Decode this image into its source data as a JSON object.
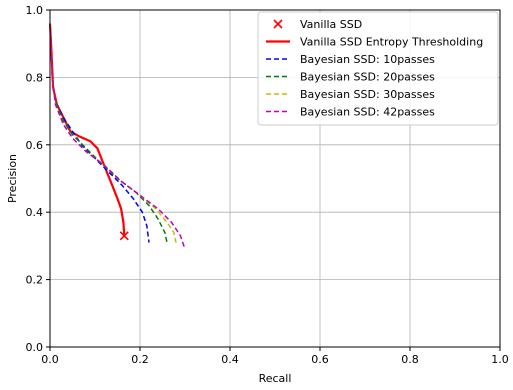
{
  "chart_data": {
    "type": "line",
    "xlabel": "Recall",
    "ylabel": "Precision",
    "xlim": [
      0.0,
      1.0
    ],
    "ylim": [
      0.0,
      1.0
    ],
    "xticks": [
      "0.0",
      "0.2",
      "0.4",
      "0.6",
      "0.8",
      "1.0"
    ],
    "yticks": [
      "0.0",
      "0.2",
      "0.4",
      "0.6",
      "0.8",
      "1.0"
    ],
    "grid": true,
    "legend_position": "top-right",
    "series": [
      {
        "name": "Vanilla SSD",
        "kind": "marker",
        "marker": "x",
        "color": "#ff0000",
        "points": [
          [
            0.165,
            0.33
          ]
        ]
      },
      {
        "name": "Vanilla SSD Entropy Thresholding",
        "kind": "line",
        "dash": "solid",
        "color": "#ff0000",
        "points": [
          [
            0.0,
            0.96
          ],
          [
            0.003,
            0.88
          ],
          [
            0.007,
            0.77
          ],
          [
            0.015,
            0.72
          ],
          [
            0.03,
            0.68
          ],
          [
            0.045,
            0.64
          ],
          [
            0.065,
            0.625
          ],
          [
            0.09,
            0.61
          ],
          [
            0.105,
            0.59
          ],
          [
            0.12,
            0.54
          ],
          [
            0.135,
            0.49
          ],
          [
            0.15,
            0.44
          ],
          [
            0.158,
            0.41
          ],
          [
            0.163,
            0.37
          ],
          [
            0.165,
            0.33
          ]
        ]
      },
      {
        "name": "Bayesian SSD: 10passes",
        "kind": "line",
        "dash": "dashed",
        "color": "#0000ff",
        "points": [
          [
            0.0,
            0.96
          ],
          [
            0.005,
            0.8
          ],
          [
            0.012,
            0.73
          ],
          [
            0.03,
            0.68
          ],
          [
            0.05,
            0.64
          ],
          [
            0.07,
            0.6
          ],
          [
            0.1,
            0.56
          ],
          [
            0.13,
            0.52
          ],
          [
            0.16,
            0.48
          ],
          [
            0.185,
            0.44
          ],
          [
            0.205,
            0.4
          ],
          [
            0.215,
            0.36
          ],
          [
            0.22,
            0.31
          ]
        ]
      },
      {
        "name": "Bayesian SSD: 20passes",
        "kind": "line",
        "dash": "dashed",
        "color": "#008000",
        "points": [
          [
            0.0,
            0.96
          ],
          [
            0.005,
            0.8
          ],
          [
            0.012,
            0.73
          ],
          [
            0.03,
            0.67
          ],
          [
            0.05,
            0.63
          ],
          [
            0.08,
            0.59
          ],
          [
            0.11,
            0.55
          ],
          [
            0.15,
            0.5
          ],
          [
            0.19,
            0.46
          ],
          [
            0.22,
            0.42
          ],
          [
            0.24,
            0.38
          ],
          [
            0.255,
            0.34
          ],
          [
            0.26,
            0.31
          ]
        ]
      },
      {
        "name": "Bayesian SSD: 30passes",
        "kind": "line",
        "dash": "dashed",
        "color": "#bfbf00",
        "points": [
          [
            0.0,
            0.96
          ],
          [
            0.005,
            0.8
          ],
          [
            0.012,
            0.72
          ],
          [
            0.03,
            0.66
          ],
          [
            0.05,
            0.62
          ],
          [
            0.08,
            0.58
          ],
          [
            0.12,
            0.54
          ],
          [
            0.16,
            0.49
          ],
          [
            0.2,
            0.45
          ],
          [
            0.235,
            0.41
          ],
          [
            0.26,
            0.37
          ],
          [
            0.275,
            0.34
          ],
          [
            0.28,
            0.31
          ]
        ]
      },
      {
        "name": "Bayesian SSD: 42passes",
        "kind": "line",
        "dash": "dashed",
        "color": "#bf00bf",
        "points": [
          [
            0.0,
            0.96
          ],
          [
            0.005,
            0.8
          ],
          [
            0.012,
            0.72
          ],
          [
            0.03,
            0.66
          ],
          [
            0.05,
            0.62
          ],
          [
            0.08,
            0.58
          ],
          [
            0.12,
            0.54
          ],
          [
            0.16,
            0.49
          ],
          [
            0.2,
            0.45
          ],
          [
            0.24,
            0.41
          ],
          [
            0.27,
            0.37
          ],
          [
            0.29,
            0.33
          ],
          [
            0.3,
            0.29
          ]
        ]
      }
    ]
  }
}
